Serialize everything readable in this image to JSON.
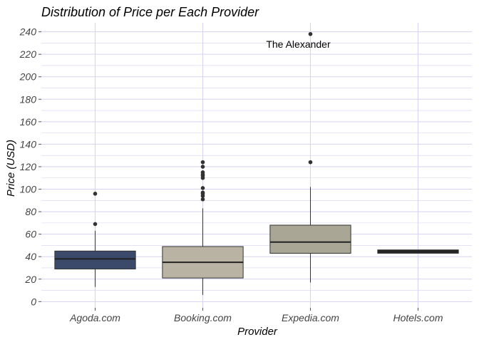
{
  "chart_data": {
    "type": "boxplot",
    "title": "Distribution of Price per Each Provider",
    "xlabel": "Provider",
    "ylabel": "Price (USD)",
    "ylim": [
      0,
      250
    ],
    "y_ticks": [
      0,
      20,
      40,
      60,
      80,
      100,
      120,
      140,
      160,
      180,
      200,
      220,
      240
    ],
    "grid": true,
    "legend": "none",
    "categories": [
      "Agoda.com",
      "Booking.com",
      "Expedia.com",
      "Hotels.com"
    ],
    "boxes": [
      {
        "category": "Agoda.com",
        "min": 13,
        "q1": 29,
        "median": 38,
        "q3": 45,
        "max": 63,
        "outliers": [
          69,
          96
        ],
        "color": "#3b4a6b"
      },
      {
        "category": "Booking.com",
        "min": 6,
        "q1": 21,
        "median": 35,
        "q3": 49,
        "max": 83,
        "outliers": [
          91,
          94,
          96,
          97,
          101,
          110,
          112,
          113,
          115,
          120,
          124
        ],
        "color": "#b8b3a3"
      },
      {
        "category": "Expedia.com",
        "min": 17,
        "q1": 43,
        "median": 53,
        "q3": 68,
        "max": 102,
        "outliers": [
          124,
          238
        ],
        "color": "#aaa696"
      },
      {
        "category": "Hotels.com",
        "min": 43,
        "q1": 43,
        "median": 45,
        "q3": 46,
        "max": 46,
        "outliers": [],
        "color": "#2b2b2b"
      }
    ],
    "annotations": [
      {
        "text": "The Alexander",
        "x": "Expedia.com",
        "y": 238
      }
    ]
  },
  "colors": {
    "grid": "#d6d2f0",
    "box_outline": "#333333",
    "point": "#333333"
  }
}
